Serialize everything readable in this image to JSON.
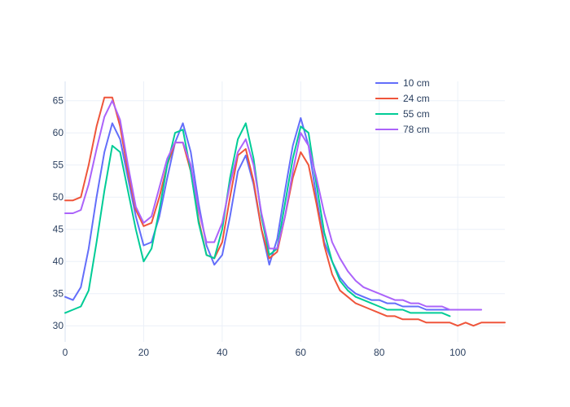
{
  "chart_data": {
    "type": "line",
    "title": "",
    "xlabel": "",
    "ylabel": "",
    "xlim": [
      0,
      112
    ],
    "ylim": [
      27.5,
      68
    ],
    "x_ticks": [
      0,
      20,
      40,
      60,
      80,
      100
    ],
    "y_ticks": [
      30,
      35,
      40,
      45,
      50,
      55,
      60,
      65
    ],
    "grid": true,
    "legend_position": "top-right",
    "series": [
      {
        "name": "10 cm",
        "color": "#636efa",
        "x": [
          0,
          2,
          4,
          6,
          8,
          10,
          12,
          14,
          16,
          18,
          20,
          22,
          24,
          26,
          28,
          30,
          32,
          34,
          36,
          38,
          40,
          42,
          44,
          46,
          48,
          50,
          52,
          54,
          56,
          58,
          60,
          62,
          64,
          66,
          68,
          70,
          72,
          74,
          76,
          78,
          80,
          82,
          84,
          86,
          88,
          90,
          92,
          94,
          96,
          98
        ],
        "y": [
          34.5,
          34.0,
          36.0,
          42.0,
          50.0,
          57.0,
          61.5,
          59.0,
          53.0,
          47.0,
          42.5,
          43.0,
          47.0,
          53.0,
          58.5,
          61.5,
          57.0,
          49.0,
          42.5,
          39.5,
          41.0,
          47.0,
          54.0,
          56.5,
          52.0,
          45.0,
          39.5,
          43.5,
          51.0,
          58.0,
          62.3,
          58.0,
          50.0,
          43.0,
          40.0,
          37.5,
          36.0,
          35.0,
          34.5,
          34.0,
          34.0,
          33.5,
          33.5,
          33.0,
          33.0,
          33.0,
          32.5,
          32.5,
          32.5,
          32.5
        ]
      },
      {
        "name": "24 cm",
        "color": "#ef553b",
        "x": [
          0,
          2,
          4,
          6,
          8,
          10,
          12,
          14,
          16,
          18,
          20,
          22,
          24,
          26,
          28,
          30,
          32,
          34,
          36,
          38,
          40,
          42,
          44,
          46,
          48,
          50,
          52,
          54,
          56,
          58,
          60,
          62,
          64,
          66,
          68,
          70,
          72,
          74,
          76,
          78,
          80,
          82,
          84,
          86,
          88,
          90,
          92,
          94,
          96,
          98,
          100,
          102,
          104,
          106,
          108,
          110,
          112
        ],
        "y": [
          49.5,
          49.5,
          50.0,
          55.0,
          61.0,
          65.5,
          65.5,
          61.0,
          54.0,
          48.0,
          45.5,
          46.0,
          50.0,
          55.0,
          58.5,
          58.5,
          54.0,
          46.5,
          41.0,
          40.5,
          43.0,
          50.0,
          56.5,
          57.5,
          52.5,
          45.0,
          40.5,
          41.5,
          47.0,
          53.0,
          57.0,
          55.0,
          49.0,
          42.5,
          38.0,
          35.5,
          34.5,
          33.5,
          33.0,
          32.5,
          32.0,
          31.5,
          31.5,
          31.0,
          31.0,
          31.0,
          30.5,
          30.5,
          30.5,
          30.5,
          30.0,
          30.5,
          30.0,
          30.5,
          30.5,
          30.5,
          30.5
        ]
      },
      {
        "name": "55 cm",
        "color": "#00cc96",
        "x": [
          0,
          2,
          4,
          6,
          8,
          10,
          12,
          14,
          16,
          18,
          20,
          22,
          24,
          26,
          28,
          30,
          32,
          34,
          36,
          38,
          40,
          42,
          44,
          46,
          48,
          50,
          52,
          54,
          56,
          58,
          60,
          62,
          64,
          66,
          68,
          70,
          72,
          74,
          76,
          78,
          80,
          82,
          84,
          86,
          88,
          90,
          92,
          94,
          96,
          98
        ],
        "y": [
          32.0,
          32.5,
          33.0,
          35.5,
          43.0,
          51.0,
          58.0,
          57.0,
          51.0,
          45.0,
          40.0,
          42.0,
          48.0,
          55.0,
          60.0,
          60.5,
          54.0,
          46.0,
          41.0,
          40.5,
          45.0,
          53.0,
          59.0,
          61.5,
          56.0,
          47.0,
          41.0,
          42.0,
          49.0,
          56.0,
          61.0,
          60.0,
          52.0,
          44.5,
          40.0,
          37.0,
          35.5,
          34.5,
          34.0,
          33.5,
          33.0,
          32.5,
          32.5,
          32.5,
          32.0,
          32.0,
          32.0,
          32.0,
          32.0,
          31.5
        ]
      },
      {
        "name": "78 cm",
        "color": "#ab63fa",
        "x": [
          0,
          2,
          4,
          6,
          8,
          10,
          12,
          14,
          16,
          18,
          20,
          22,
          24,
          26,
          28,
          30,
          32,
          34,
          36,
          38,
          40,
          42,
          44,
          46,
          48,
          50,
          52,
          54,
          56,
          58,
          60,
          62,
          64,
          66,
          68,
          70,
          72,
          74,
          76,
          78,
          80,
          82,
          84,
          86,
          88,
          90,
          92,
          94,
          96,
          98,
          100,
          102,
          104,
          106
        ],
        "y": [
          47.5,
          47.5,
          48.0,
          52.0,
          57.5,
          62.5,
          65.0,
          62.0,
          55.0,
          48.5,
          46.0,
          47.0,
          51.5,
          56.0,
          58.5,
          58.5,
          55.0,
          48.0,
          43.0,
          43.0,
          46.0,
          52.0,
          57.0,
          59.0,
          55.0,
          47.5,
          42.0,
          42.0,
          47.0,
          54.0,
          60.0,
          58.0,
          53.0,
          47.5,
          43.0,
          40.5,
          38.5,
          37.0,
          36.0,
          35.5,
          35.0,
          34.5,
          34.0,
          34.0,
          33.5,
          33.5,
          33.0,
          33.0,
          33.0,
          32.5,
          32.5,
          32.5,
          32.5,
          32.5
        ]
      }
    ]
  }
}
